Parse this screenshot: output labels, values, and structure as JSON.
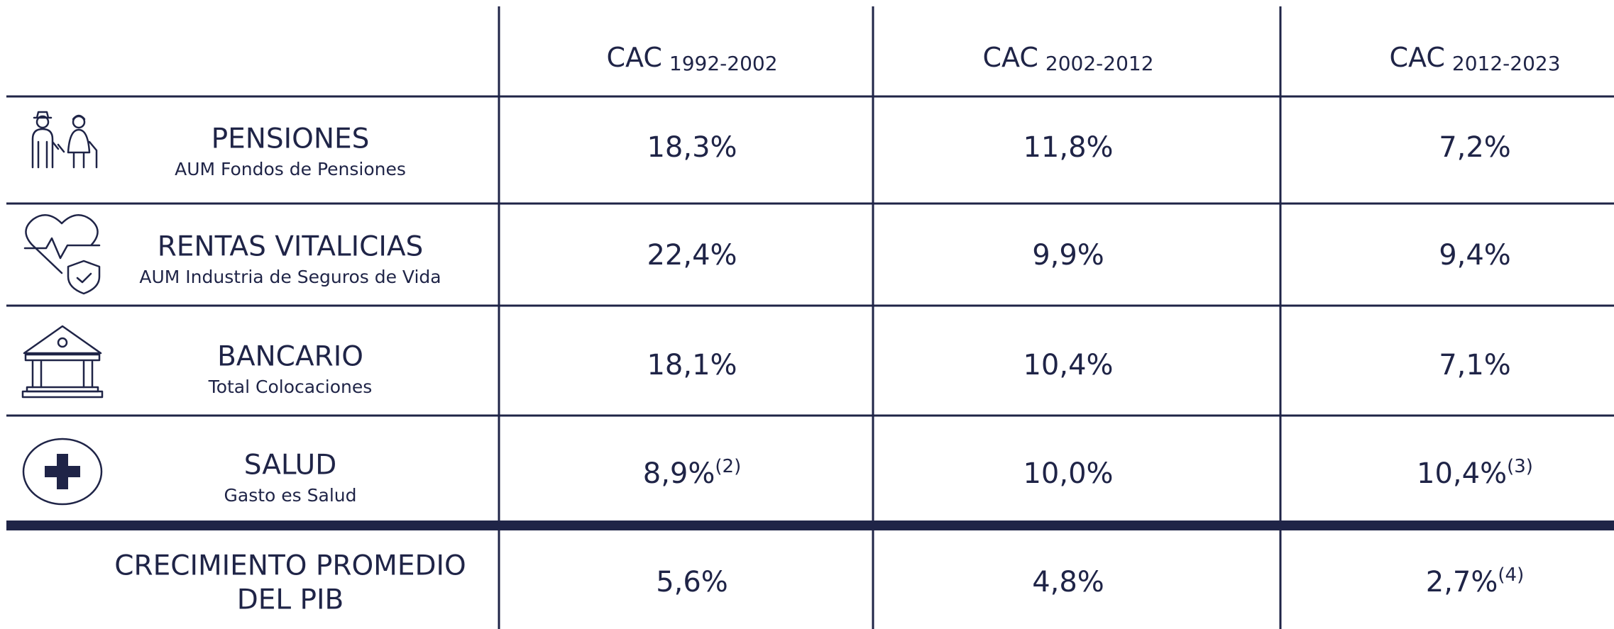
{
  "table": {
    "columns": [
      {
        "main": "CAC",
        "sub": "1992-2002"
      },
      {
        "main": "CAC",
        "sub": "2002-2012"
      },
      {
        "main": "CAC",
        "sub": "2012-2023"
      }
    ],
    "rows": [
      {
        "name": "PENSIONES",
        "subtitle": "AUM Fondos de Pensiones",
        "cells": [
          {
            "text": "18,3%"
          },
          {
            "text": "11,8%"
          },
          {
            "text": "7,2%"
          }
        ]
      },
      {
        "name": "RENTAS VITALICIAS",
        "subtitle": "AUM Industria de Seguros de Vida",
        "cells": [
          {
            "text": "22,4%"
          },
          {
            "text": "9,9%"
          },
          {
            "text": "9,4%"
          }
        ]
      },
      {
        "name": "BANCARIO",
        "subtitle": "Total Colocaciones",
        "cells": [
          {
            "text": "18,1%"
          },
          {
            "text": "10,4%"
          },
          {
            "text": "7,1%"
          }
        ]
      },
      {
        "name": "SALUD",
        "subtitle": "Gasto es Salud",
        "cells": [
          {
            "text": "8,9%",
            "note": "(2)"
          },
          {
            "text": "10,0%"
          },
          {
            "text": "10,4%",
            "note": "(3)"
          }
        ]
      }
    ],
    "total": {
      "name_lines": [
        "CRECIMIENTO PROMEDIO",
        "DEL PIB"
      ],
      "cells": [
        {
          "text": "5,6%"
        },
        {
          "text": "4,8%"
        },
        {
          "text": "2,7%",
          "note": "(4)"
        }
      ]
    }
  }
}
